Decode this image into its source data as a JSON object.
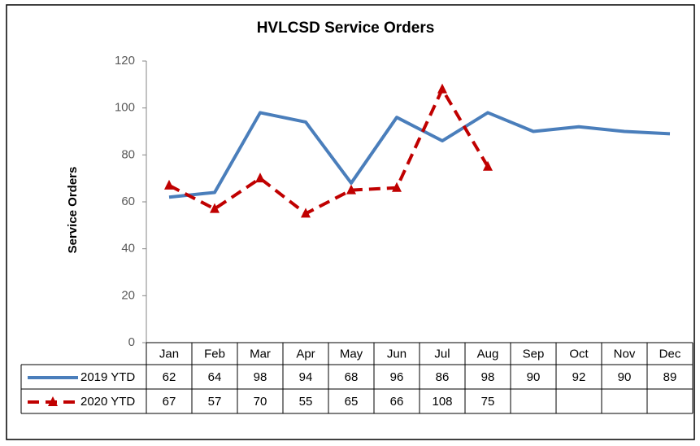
{
  "chart_data": {
    "type": "line",
    "title": "HVLCSD Service Orders",
    "y_label": "Service Orders",
    "categories": [
      "Jan",
      "Feb",
      "Mar",
      "Apr",
      "May",
      "Jun",
      "Jul",
      "Aug",
      "Sep",
      "Oct",
      "Nov",
      "Dec"
    ],
    "series": [
      {
        "name": "2019 YTD",
        "color": "#4a7ebb",
        "dash": "solid",
        "marker": "none",
        "values": [
          62,
          64,
          98,
          94,
          68,
          96,
          86,
          98,
          90,
          92,
          90,
          89
        ]
      },
      {
        "name": "2020 YTD",
        "color": "#c00000",
        "dash": "dashed",
        "marker": "triangle",
        "values": [
          67,
          57,
          70,
          55,
          65,
          66,
          108,
          75,
          null,
          null,
          null,
          null
        ]
      }
    ],
    "ylim": [
      0,
      120
    ],
    "yticks": [
      0,
      20,
      40,
      60,
      80,
      100,
      120
    ],
    "grid": false
  }
}
